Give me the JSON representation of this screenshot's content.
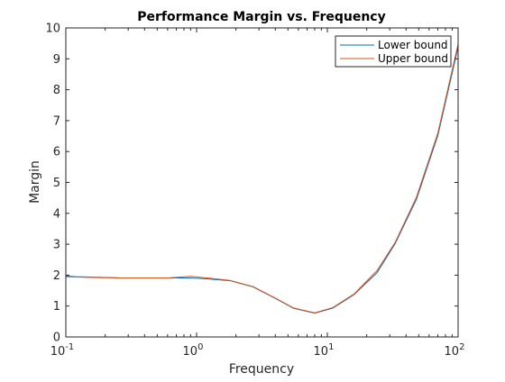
{
  "chart_data": {
    "type": "line",
    "title": "Performance Margin vs. Frequency",
    "xlabel": "Frequency",
    "ylabel": "Margin",
    "xscale": "log",
    "xlim": [
      0.1,
      100
    ],
    "ylim": [
      0,
      10
    ],
    "xticks": [
      {
        "value": 0.1,
        "base": "10",
        "exp": "-1"
      },
      {
        "value": 1,
        "base": "10",
        "exp": "0"
      },
      {
        "value": 10,
        "base": "10",
        "exp": "1"
      },
      {
        "value": 100,
        "base": "10",
        "exp": "2"
      }
    ],
    "yticks": [
      "0",
      "1",
      "2",
      "3",
      "4",
      "5",
      "6",
      "7",
      "8",
      "9",
      "10"
    ],
    "grid": false,
    "legend": "top-right",
    "series": [
      {
        "name": "Lower bound",
        "color": "#0072BD",
        "x": [
          0.1,
          0.12,
          0.18,
          0.27,
          0.4,
          0.6,
          0.9,
          1.2,
          1.8,
          2.7,
          4,
          5.5,
          8,
          11,
          16,
          24,
          33,
          48,
          70,
          100
        ],
        "y": [
          1.97,
          1.95,
          1.93,
          1.91,
          1.91,
          1.91,
          1.91,
          1.88,
          1.82,
          1.62,
          1.25,
          0.93,
          0.77,
          0.93,
          1.37,
          2.08,
          3.02,
          4.45,
          6.52,
          9.38
        ]
      },
      {
        "name": "Upper bound",
        "color": "#D95319",
        "x": [
          0.1,
          0.12,
          0.18,
          0.27,
          0.4,
          0.6,
          0.9,
          1.2,
          1.8,
          2.7,
          4,
          5.5,
          8,
          11,
          16,
          24,
          33,
          48,
          70,
          100
        ],
        "y": [
          1.95,
          1.94,
          1.92,
          1.91,
          1.91,
          1.91,
          1.96,
          1.91,
          1.83,
          1.63,
          1.26,
          0.94,
          0.78,
          0.95,
          1.39,
          2.15,
          3.06,
          4.52,
          6.6,
          9.48
        ]
      }
    ]
  }
}
